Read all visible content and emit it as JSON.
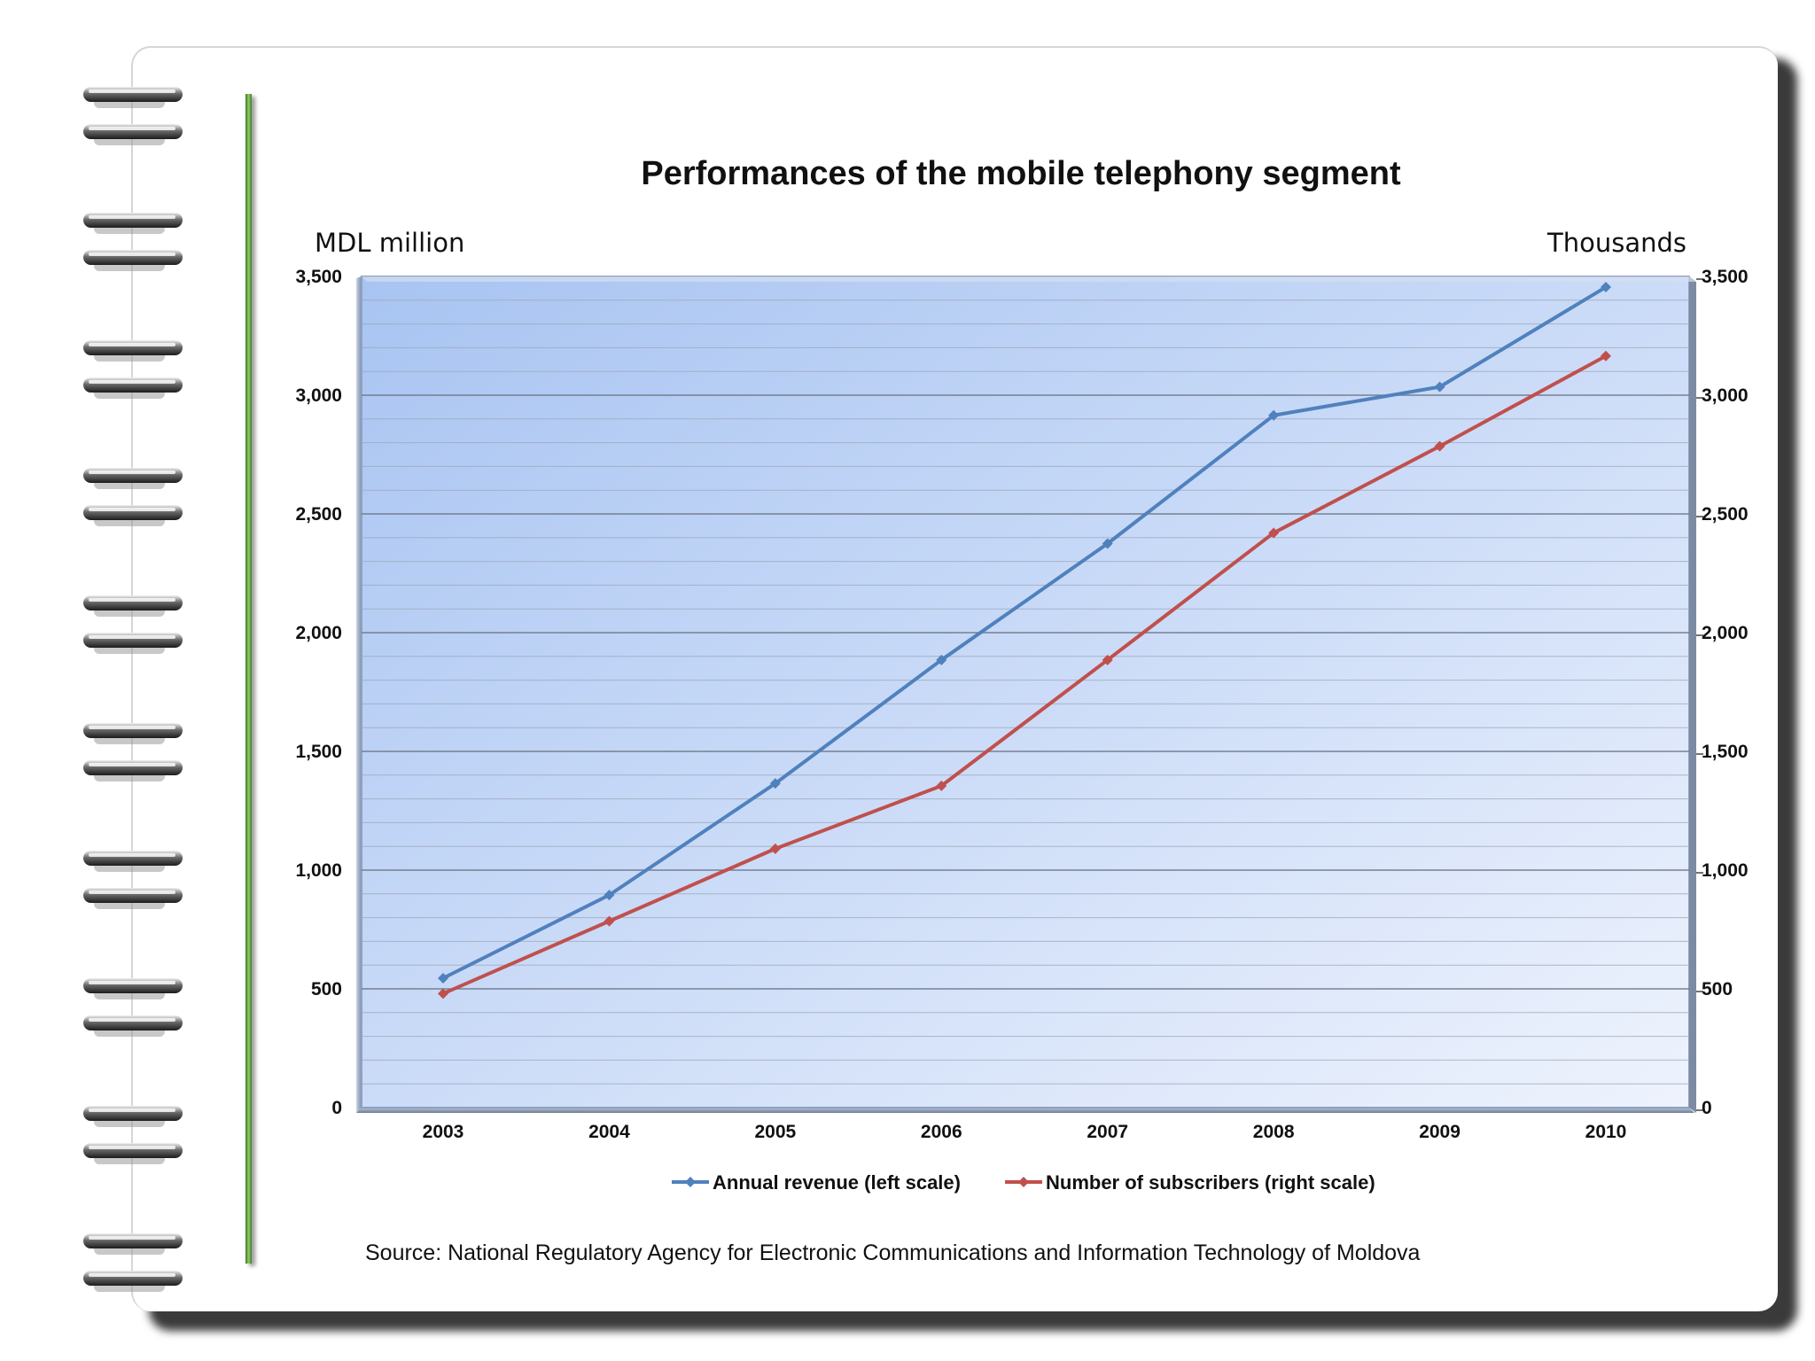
{
  "colors": {
    "revenue": "#4f81bd",
    "subscribers": "#c0504d",
    "plot_bg_start": "#a8c4f2",
    "plot_bg_end": "#eef3fd",
    "margin_line": "#5ea43a"
  },
  "chart_data": {
    "type": "line",
    "title": "Performances of the mobile telephony segment",
    "categories": [
      "2003",
      "2004",
      "2005",
      "2006",
      "2007",
      "2008",
      "2009",
      "2010"
    ],
    "left_axis": {
      "label": "MDL million",
      "ylim": [
        0,
        3500
      ],
      "ticks": [
        "0",
        "500",
        "1,000",
        "1,500",
        "2,000",
        "2,500",
        "3,000",
        "3,500"
      ],
      "tick_values": [
        0,
        500,
        1000,
        1500,
        2000,
        2500,
        3000,
        3500
      ]
    },
    "right_axis": {
      "label": "Thousands",
      "ylim": [
        0,
        3500
      ],
      "ticks": [
        "0",
        "500",
        "1,000",
        "1,500",
        "2,000",
        "2,500",
        "3,000",
        "3,500"
      ],
      "tick_values": [
        0,
        500,
        1000,
        1500,
        2000,
        2500,
        3000,
        3500
      ]
    },
    "series": [
      {
        "name": "Annual revenue (left scale)",
        "axis": "left",
        "values": [
          545,
          895,
          1365,
          1885,
          2375,
          2915,
          3035,
          3455
        ]
      },
      {
        "name": "Number of subscribers (right scale)",
        "axis": "right",
        "values": [
          480,
          785,
          1090,
          1355,
          1885,
          2420,
          2785,
          3165
        ]
      }
    ],
    "grid": true,
    "legend": "bottom"
  },
  "source": "Source: National Regulatory Agency for Electronic Communications and Information Technology of Moldova"
}
